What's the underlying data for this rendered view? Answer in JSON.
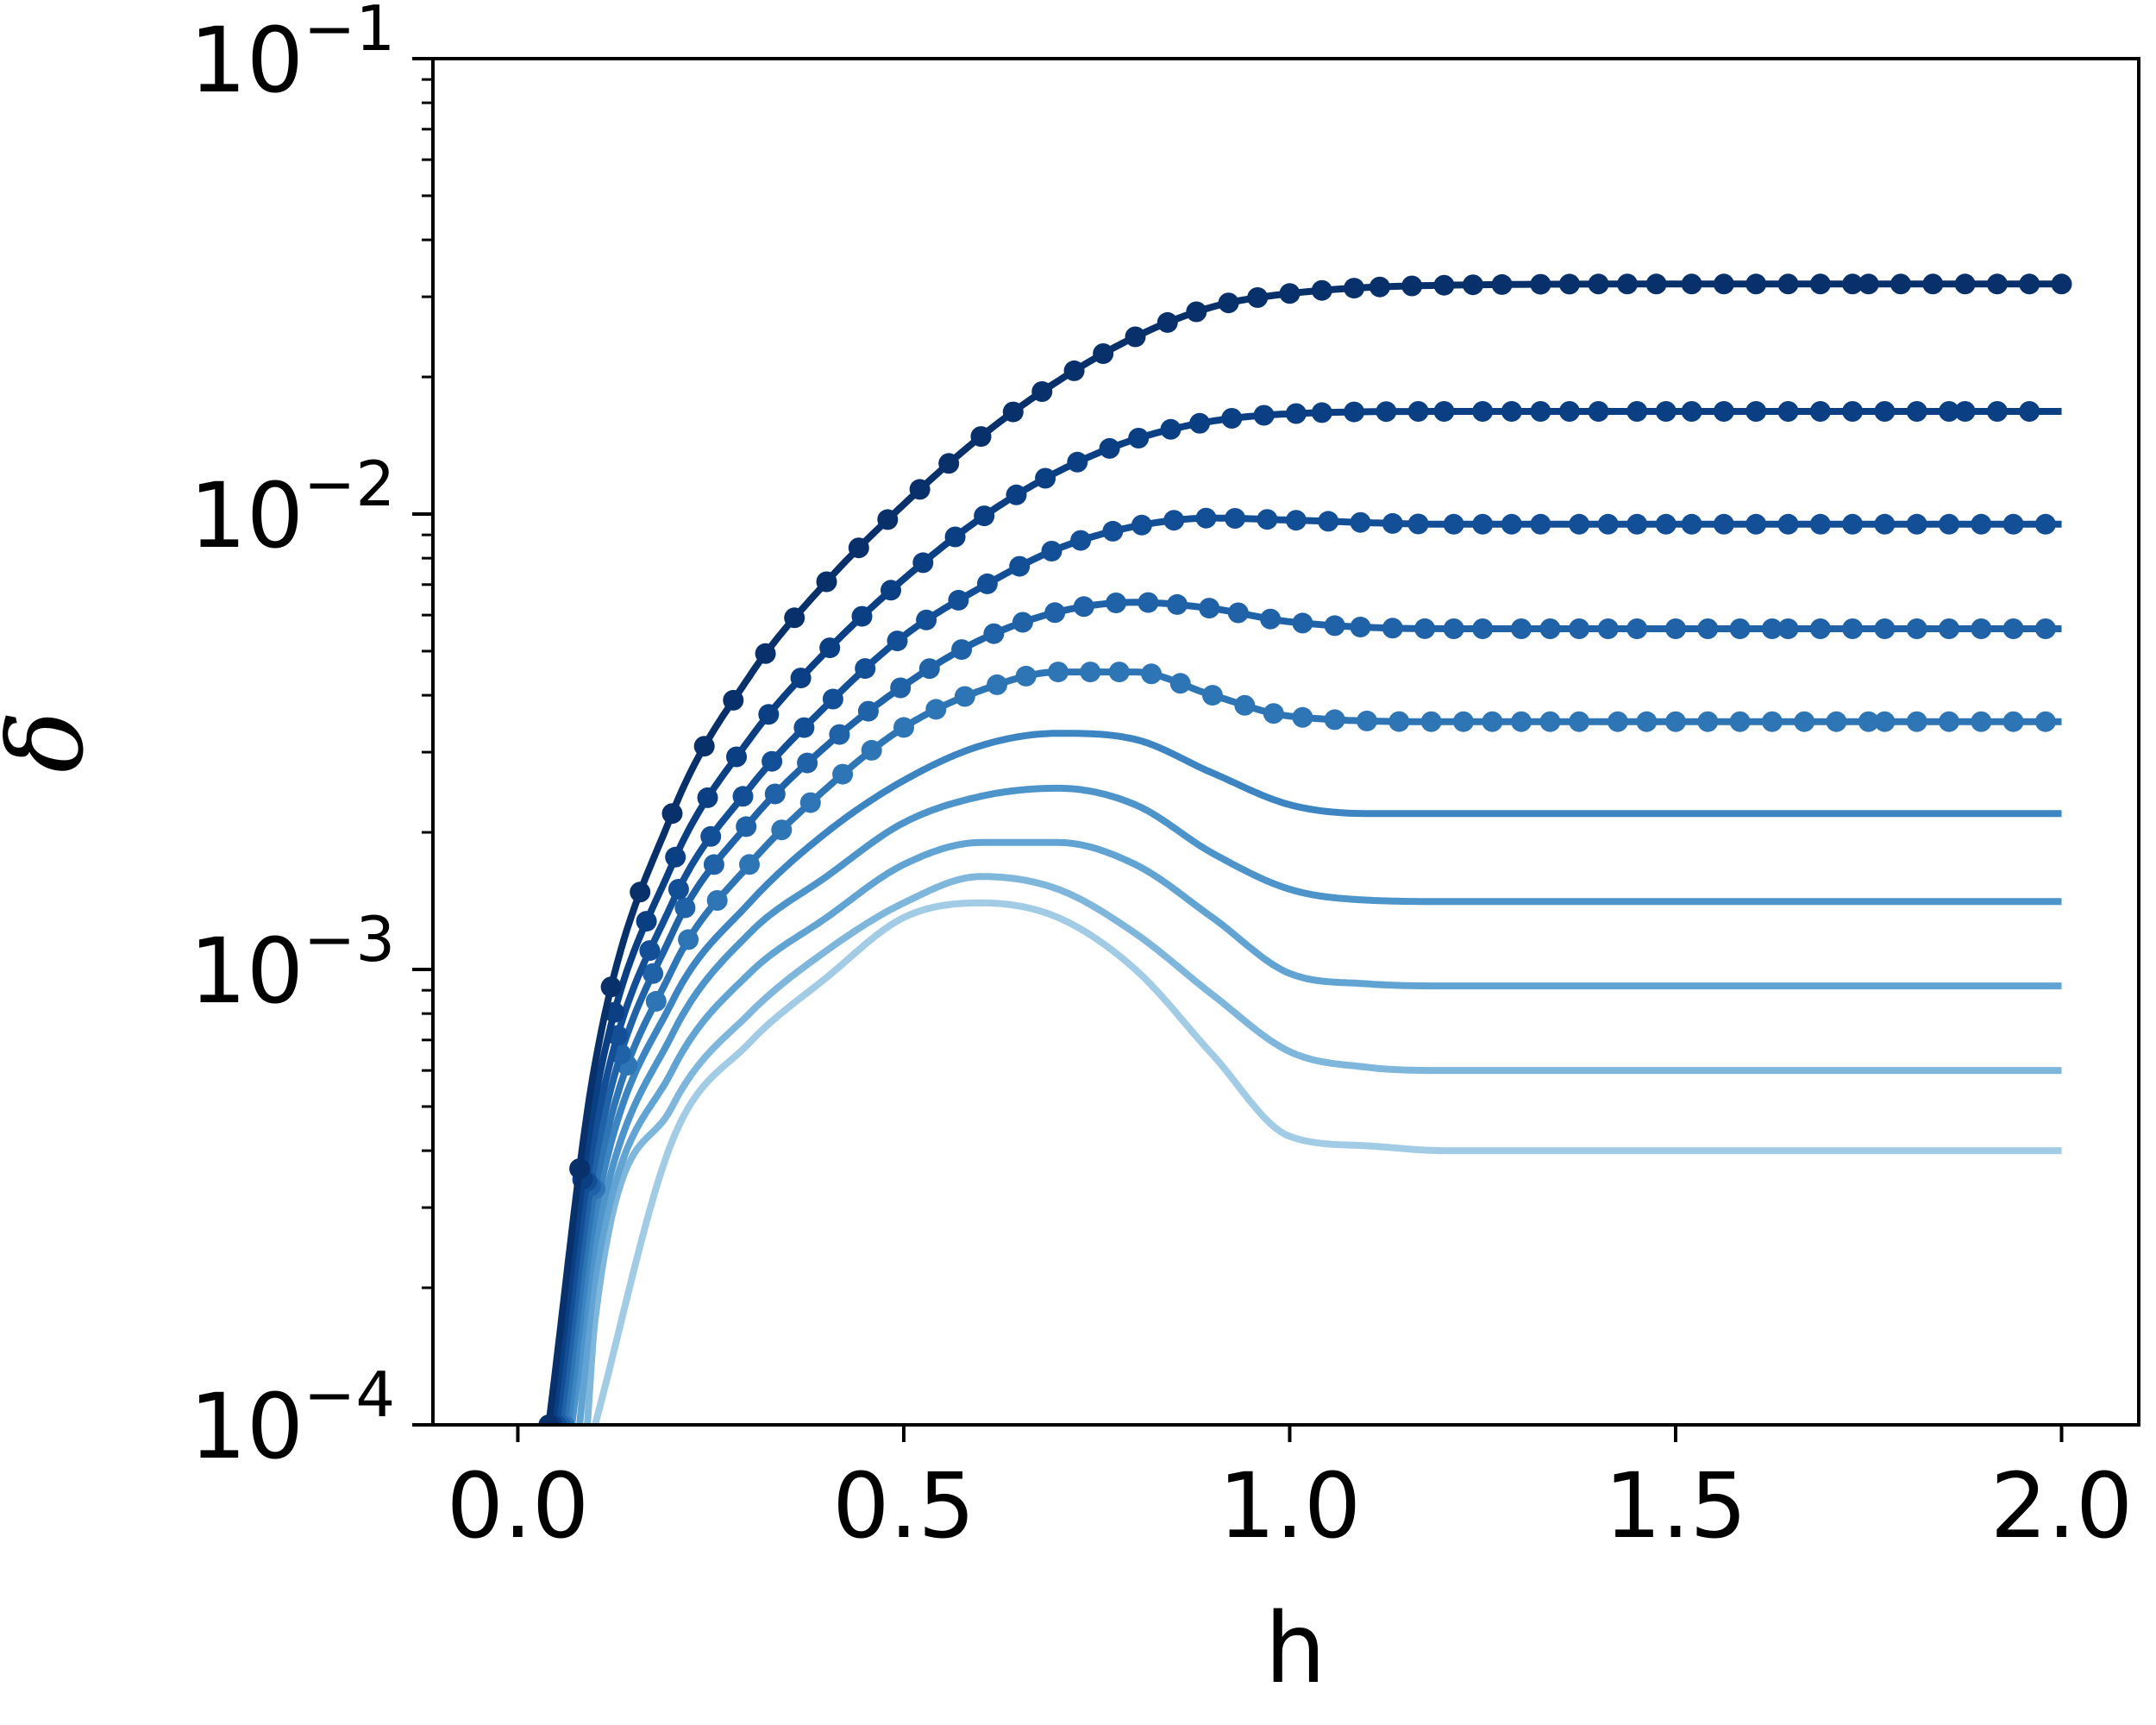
{
  "chart_data": {
    "type": "line",
    "title": "",
    "xlabel": "h",
    "ylabel": "δ",
    "xlim": [
      -0.11,
      2.1
    ],
    "ylim": [
      0.0001,
      0.1
    ],
    "xscale": "linear",
    "yscale": "log",
    "grid": false,
    "legend": "none",
    "xticks": [
      {
        "value": 0.0,
        "label": "0.0"
      },
      {
        "value": 0.5,
        "label": "0.5"
      },
      {
        "value": 1.0,
        "label": "1.0"
      },
      {
        "value": 1.5,
        "label": "1.5"
      },
      {
        "value": 2.0,
        "label": "2.0"
      }
    ],
    "yticks": [
      {
        "value": 0.0001,
        "base": "10",
        "exp": "−4"
      },
      {
        "value": 0.001,
        "base": "10",
        "exp": "−3"
      },
      {
        "value": 0.01,
        "base": "10",
        "exp": "−2"
      },
      {
        "value": 0.1,
        "base": "10",
        "exp": "−1"
      }
    ],
    "series": [
      {
        "color": "#08306b",
        "markers": true,
        "x": [
          0.04,
          0.1,
          0.2,
          0.3,
          0.4,
          0.5,
          0.6,
          0.7,
          0.8,
          0.9,
          1.0,
          1.2,
          1.5,
          2.0
        ],
        "y": [
          0.0001,
          0.00062,
          0.0022,
          0.0044,
          0.0071,
          0.0105,
          0.0148,
          0.0196,
          0.0245,
          0.0285,
          0.0305,
          0.0318,
          0.032,
          0.032
        ]
      },
      {
        "color": "#0a3f84",
        "markers": true,
        "x": [
          0.045,
          0.1,
          0.2,
          0.3,
          0.4,
          0.5,
          0.6,
          0.7,
          0.8,
          0.9,
          1.0,
          1.2,
          1.5,
          2.0
        ],
        "y": [
          0.0001,
          0.00052,
          0.0017,
          0.0032,
          0.005,
          0.0072,
          0.0098,
          0.0124,
          0.0146,
          0.016,
          0.0166,
          0.0168,
          0.0168,
          0.0168
        ]
      },
      {
        "color": "#134f97",
        "markers": true,
        "x": [
          0.05,
          0.1,
          0.2,
          0.3,
          0.4,
          0.5,
          0.6,
          0.7,
          0.8,
          0.9,
          1.0,
          1.2,
          1.5,
          2.0
        ],
        "y": [
          0.0001,
          0.00044,
          0.0014,
          0.0025,
          0.0038,
          0.0054,
          0.0069,
          0.0084,
          0.0094,
          0.0098,
          0.0097,
          0.0095,
          0.0095,
          0.0095
        ]
      },
      {
        "color": "#1f62a8",
        "markers": true,
        "x": [
          0.055,
          0.1,
          0.2,
          0.3,
          0.4,
          0.5,
          0.6,
          0.7,
          0.8,
          0.9,
          1.0,
          1.2,
          1.5,
          2.0
        ],
        "y": [
          0.0001,
          0.00038,
          0.0012,
          0.0021,
          0.0031,
          0.0042,
          0.0053,
          0.0061,
          0.0064,
          0.0062,
          0.0058,
          0.0056,
          0.0056,
          0.0056
        ]
      },
      {
        "color": "#2e75b6",
        "markers": true,
        "x": [
          0.06,
          0.1,
          0.2,
          0.3,
          0.4,
          0.5,
          0.6,
          0.7,
          0.8,
          0.9,
          1.0,
          1.2,
          1.5,
          2.0
        ],
        "y": [
          0.0001,
          0.00033,
          0.001,
          0.0017,
          0.0025,
          0.0034,
          0.0041,
          0.0045,
          0.0045,
          0.004,
          0.0036,
          0.0035,
          0.0035,
          0.0035
        ]
      },
      {
        "color": "#3d85c2",
        "markers": false,
        "x": [
          0.065,
          0.1,
          0.2,
          0.3,
          0.4,
          0.5,
          0.6,
          0.7,
          0.8,
          0.9,
          1.0,
          1.1,
          1.2,
          1.5,
          2.0
        ],
        "y": [
          0.0001,
          0.00029,
          0.00085,
          0.0014,
          0.002,
          0.0026,
          0.0031,
          0.0033,
          0.0032,
          0.0027,
          0.0023,
          0.0022,
          0.0022,
          0.0022,
          0.0022
        ]
      },
      {
        "color": "#4d94cb",
        "markers": false,
        "x": [
          0.07,
          0.1,
          0.2,
          0.3,
          0.4,
          0.5,
          0.6,
          0.7,
          0.8,
          0.9,
          1.0,
          1.1,
          1.2,
          1.5,
          2.0
        ],
        "y": [
          0.0001,
          0.00025,
          0.00072,
          0.0012,
          0.0016,
          0.0021,
          0.0024,
          0.0025,
          0.0023,
          0.0018,
          0.0015,
          0.00142,
          0.00141,
          0.00141,
          0.00141
        ]
      },
      {
        "color": "#61a4d3",
        "markers": false,
        "x": [
          0.08,
          0.1,
          0.2,
          0.3,
          0.4,
          0.5,
          0.6,
          0.7,
          0.8,
          0.9,
          1.0,
          1.1,
          1.2,
          1.5,
          2.0
        ],
        "y": [
          0.0001,
          0.00021,
          0.0006,
          0.00098,
          0.0013,
          0.0017,
          0.0019,
          0.0019,
          0.0017,
          0.0013,
          0.00098,
          0.00093,
          0.00092,
          0.00092,
          0.00092
        ]
      },
      {
        "color": "#7fb6dc",
        "markers": false,
        "x": [
          0.09,
          0.1,
          0.2,
          0.3,
          0.4,
          0.5,
          0.6,
          0.7,
          0.8,
          0.9,
          1.0,
          1.1,
          1.2,
          1.5,
          2.0
        ],
        "y": [
          0.0001,
          0.00017,
          0.0005,
          0.0008,
          0.0011,
          0.0014,
          0.0016,
          0.0015,
          0.0012,
          0.00088,
          0.00066,
          0.00061,
          0.0006,
          0.0006,
          0.0006
        ]
      },
      {
        "color": "#a2cce5",
        "markers": false,
        "x": [
          0.1,
          0.2,
          0.3,
          0.4,
          0.5,
          0.6,
          0.7,
          0.8,
          0.9,
          1.0,
          1.1,
          1.2,
          1.5,
          2.0
        ],
        "y": [
          0.0001,
          0.00042,
          0.00069,
          0.00096,
          0.0013,
          0.0014,
          0.0013,
          0.001,
          0.00065,
          0.00043,
          0.00041,
          0.0004,
          0.0004,
          0.0004
        ]
      }
    ]
  }
}
